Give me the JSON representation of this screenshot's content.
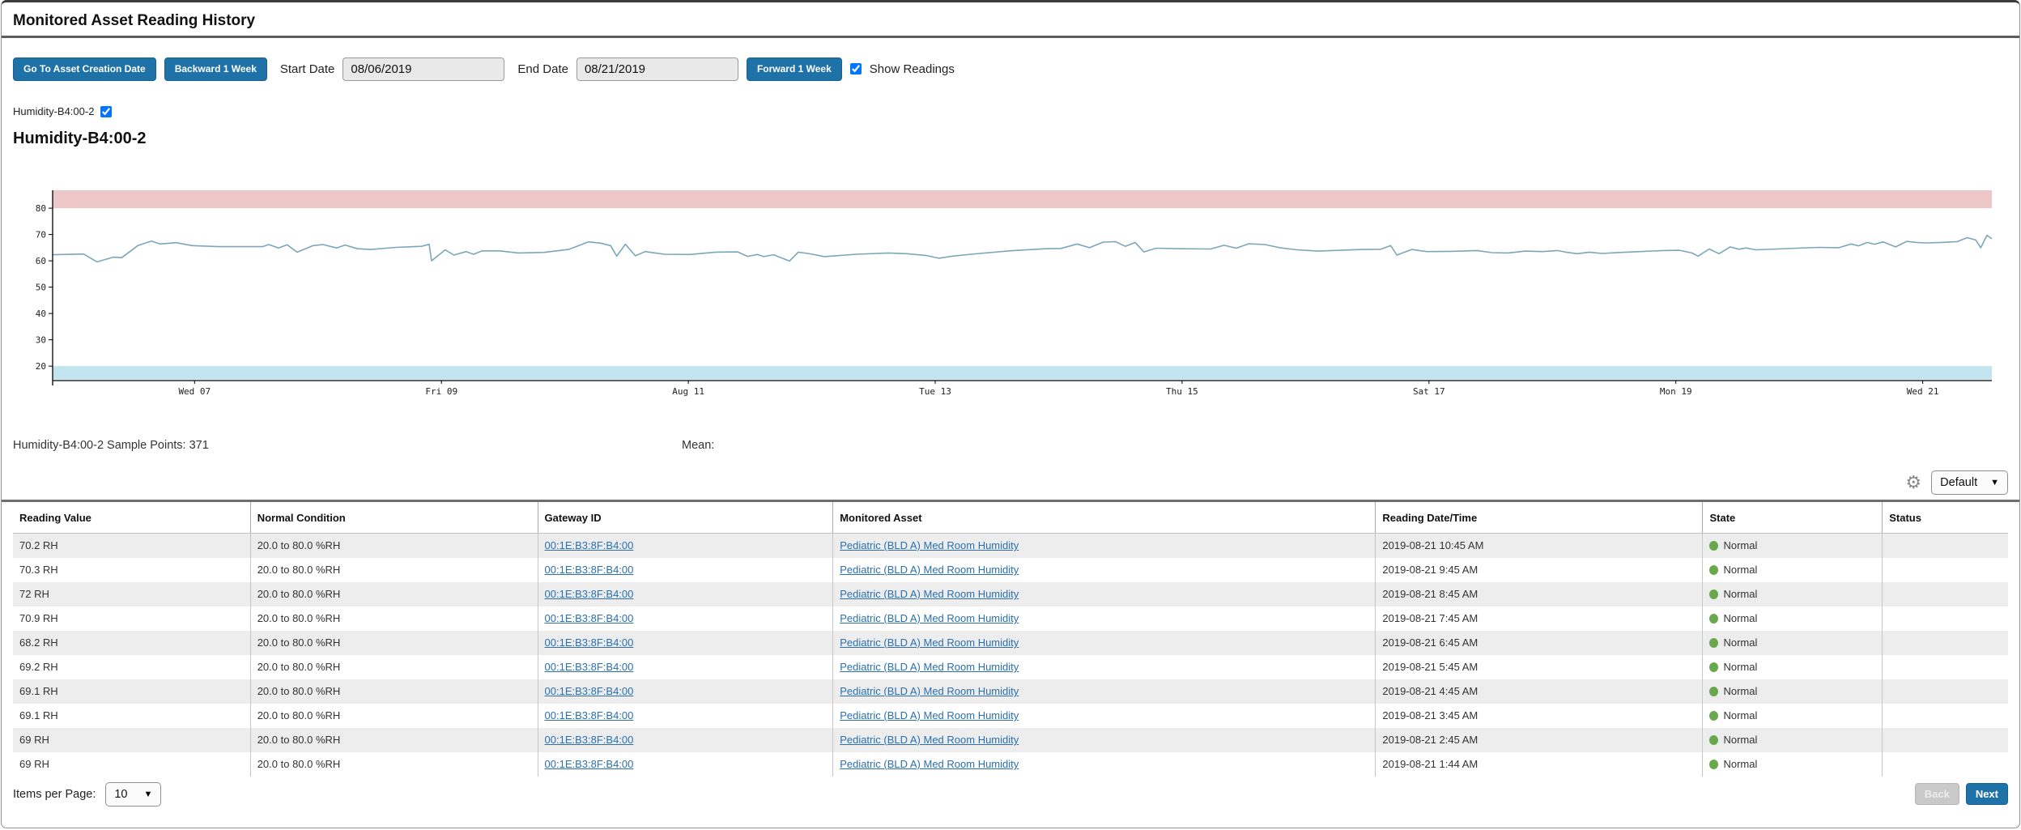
{
  "page": {
    "title": "Monitored Asset Reading History"
  },
  "colors": {
    "accent_blue": "#1f72a8",
    "link_blue": "#2a6fae",
    "state_normal_green": "#6aa84e",
    "band_high_pink": "#edc7c7",
    "band_low_blue": "#c2e4ee",
    "line_blue": "#7ba7b9"
  },
  "toolbar": {
    "go_to_creation_label": "Go To Asset Creation Date",
    "backward_label": "Backward 1 Week",
    "start_date_label": "Start Date",
    "start_date_value": "08/06/2019",
    "end_date_label": "End Date",
    "end_date_value": "08/21/2019",
    "forward_label": "Forward 1 Week",
    "show_readings_label": "Show Readings",
    "show_readings_checked": true
  },
  "series_toggle": {
    "label": "Humidity-B4:00-2",
    "checked": true
  },
  "chart_heading": "Humidity-B4:00-2",
  "chart_data": {
    "type": "line",
    "title": "Humidity-B4:00-2",
    "xlabel": "",
    "ylabel": "",
    "unit": "%RH",
    "sample_points": 371,
    "ylim": [
      14.5,
      86.8
    ],
    "yticks": [
      20,
      30,
      40,
      50,
      60,
      70,
      80
    ],
    "x_range_days": [
      -0.15,
      15.56
    ],
    "xtick_days": [
      1,
      3,
      5,
      7,
      9,
      11,
      13,
      15
    ],
    "xtick_labels": [
      "Wed 07",
      "Fri 09",
      "Aug 11",
      "Tue 13",
      "Thu 15",
      "Sat 17",
      "Mon 19",
      "Wed 21"
    ],
    "grid": false,
    "legend": "none",
    "bands": {
      "high": {
        "from": 80,
        "to": 86.8,
        "color": "#edc7c7",
        "meaning": "above normal condition max 80.0 %RH"
      },
      "low": {
        "from": 14.9,
        "to": 20,
        "color": "#c2e4ee",
        "meaning": "below normal condition min 20.0 %RH"
      }
    },
    "series": [
      {
        "name": "Humidity-B4:00-2",
        "color": "#7ba7b9",
        "x_unit": "days since 2019-08-06 00:00",
        "points": [
          [
            -0.15,
            62.3
          ],
          [
            0.1,
            62.6
          ],
          [
            0.21,
            59.6
          ],
          [
            0.34,
            61.4
          ],
          [
            0.41,
            61.2
          ],
          [
            0.54,
            65.8
          ],
          [
            0.65,
            67.5
          ],
          [
            0.72,
            66.4
          ],
          [
            0.85,
            66.9
          ],
          [
            0.98,
            65.8
          ],
          [
            1.19,
            65.4
          ],
          [
            1.55,
            65.4
          ],
          [
            1.6,
            66.2
          ],
          [
            1.68,
            64.9
          ],
          [
            1.75,
            66.1
          ],
          [
            1.83,
            63.3
          ],
          [
            1.96,
            65.8
          ],
          [
            2.04,
            66.2
          ],
          [
            2.15,
            64.9
          ],
          [
            2.22,
            66.0
          ],
          [
            2.32,
            64.6
          ],
          [
            2.43,
            64.3
          ],
          [
            2.63,
            65.1
          ],
          [
            2.84,
            65.5
          ],
          [
            2.9,
            66.3
          ],
          [
            2.92,
            60.0
          ],
          [
            3.03,
            64.2
          ],
          [
            3.1,
            62.2
          ],
          [
            3.2,
            63.5
          ],
          [
            3.26,
            62.5
          ],
          [
            3.33,
            63.8
          ],
          [
            3.47,
            63.8
          ],
          [
            3.62,
            63.0
          ],
          [
            3.83,
            63.2
          ],
          [
            4.03,
            64.3
          ],
          [
            4.19,
            67.2
          ],
          [
            4.29,
            66.7
          ],
          [
            4.37,
            65.8
          ],
          [
            4.42,
            61.8
          ],
          [
            4.49,
            66.3
          ],
          [
            4.57,
            61.9
          ],
          [
            4.65,
            63.5
          ],
          [
            4.73,
            63.0
          ],
          [
            4.81,
            62.5
          ],
          [
            5.01,
            62.4
          ],
          [
            5.22,
            63.3
          ],
          [
            5.4,
            63.4
          ],
          [
            5.48,
            61.7
          ],
          [
            5.56,
            62.4
          ],
          [
            5.61,
            61.6
          ],
          [
            5.69,
            62.3
          ],
          [
            5.82,
            59.9
          ],
          [
            5.89,
            63.3
          ],
          [
            5.97,
            62.8
          ],
          [
            6.1,
            61.6
          ],
          [
            6.36,
            62.5
          ],
          [
            6.62,
            63.0
          ],
          [
            6.77,
            62.7
          ],
          [
            6.93,
            62.0
          ],
          [
            7.03,
            61.0
          ],
          [
            7.14,
            61.8
          ],
          [
            7.29,
            62.5
          ],
          [
            7.6,
            63.8
          ],
          [
            7.89,
            64.6
          ],
          [
            8.02,
            64.7
          ],
          [
            8.15,
            66.4
          ],
          [
            8.25,
            65.0
          ],
          [
            8.36,
            67.1
          ],
          [
            8.46,
            67.3
          ],
          [
            8.54,
            65.5
          ],
          [
            8.62,
            67.0
          ],
          [
            8.69,
            63.4
          ],
          [
            8.79,
            64.8
          ],
          [
            9.0,
            64.6
          ],
          [
            9.23,
            64.5
          ],
          [
            9.34,
            65.9
          ],
          [
            9.44,
            64.8
          ],
          [
            9.54,
            66.5
          ],
          [
            9.67,
            66.2
          ],
          [
            9.79,
            65.0
          ],
          [
            9.93,
            64.2
          ],
          [
            10.1,
            63.7
          ],
          [
            10.28,
            64.0
          ],
          [
            10.46,
            64.3
          ],
          [
            10.61,
            64.4
          ],
          [
            10.69,
            65.8
          ],
          [
            10.74,
            62.2
          ],
          [
            10.86,
            64.3
          ],
          [
            10.98,
            63.5
          ],
          [
            11.18,
            63.6
          ],
          [
            11.39,
            63.9
          ],
          [
            11.51,
            63.1
          ],
          [
            11.64,
            63.0
          ],
          [
            11.78,
            63.7
          ],
          [
            11.92,
            63.5
          ],
          [
            12.04,
            63.9
          ],
          [
            12.11,
            63.3
          ],
          [
            12.2,
            62.7
          ],
          [
            12.3,
            63.3
          ],
          [
            12.4,
            62.8
          ],
          [
            12.56,
            63.2
          ],
          [
            12.75,
            63.6
          ],
          [
            12.9,
            63.9
          ],
          [
            13.03,
            64.0
          ],
          [
            13.13,
            63.0
          ],
          [
            13.18,
            61.8
          ],
          [
            13.27,
            64.5
          ],
          [
            13.35,
            62.7
          ],
          [
            13.44,
            65.3
          ],
          [
            13.51,
            64.4
          ],
          [
            13.57,
            64.9
          ],
          [
            13.65,
            64.2
          ],
          [
            13.82,
            64.5
          ],
          [
            13.98,
            64.8
          ],
          [
            14.16,
            65.1
          ],
          [
            14.32,
            65.0
          ],
          [
            14.42,
            66.4
          ],
          [
            14.48,
            65.7
          ],
          [
            14.55,
            67.0
          ],
          [
            14.61,
            66.3
          ],
          [
            14.68,
            67.2
          ],
          [
            14.78,
            65.3
          ],
          [
            14.87,
            67.4
          ],
          [
            14.95,
            67.0
          ],
          [
            15.02,
            66.8
          ],
          [
            15.15,
            67.0
          ],
          [
            15.28,
            67.3
          ],
          [
            15.36,
            68.8
          ],
          [
            15.43,
            67.9
          ],
          [
            15.47,
            65.0
          ],
          [
            15.52,
            69.7
          ],
          [
            15.56,
            68.4
          ]
        ]
      }
    ]
  },
  "summary": {
    "sample_points_text": "Humidity-B4:00-2 Sample Points: 371",
    "mean_text": "Mean:"
  },
  "table_controls": {
    "view_selector_value": "Default"
  },
  "table": {
    "columns": [
      "Reading Value",
      "Normal Condition",
      "Gateway ID",
      "Monitored Asset",
      "Reading Date/Time",
      "State",
      "Status"
    ],
    "rows": [
      {
        "reading_value": "70.2 RH",
        "normal_condition": "20.0 to 80.0 %RH",
        "gateway_id": "00:1E:B3:8F:B4:00",
        "monitored_asset": "Pediatric (BLD A) Med Room Humidity",
        "reading_datetime": "2019-08-21 10:45 AM",
        "state": "Normal",
        "status": ""
      },
      {
        "reading_value": "70.3 RH",
        "normal_condition": "20.0 to 80.0 %RH",
        "gateway_id": "00:1E:B3:8F:B4:00",
        "monitored_asset": "Pediatric (BLD A) Med Room Humidity",
        "reading_datetime": "2019-08-21 9:45 AM",
        "state": "Normal",
        "status": ""
      },
      {
        "reading_value": "72 RH",
        "normal_condition": "20.0 to 80.0 %RH",
        "gateway_id": "00:1E:B3:8F:B4:00",
        "monitored_asset": "Pediatric (BLD A) Med Room Humidity",
        "reading_datetime": "2019-08-21 8:45 AM",
        "state": "Normal",
        "status": ""
      },
      {
        "reading_value": "70.9 RH",
        "normal_condition": "20.0 to 80.0 %RH",
        "gateway_id": "00:1E:B3:8F:B4:00",
        "monitored_asset": "Pediatric (BLD A) Med Room Humidity",
        "reading_datetime": "2019-08-21 7:45 AM",
        "state": "Normal",
        "status": ""
      },
      {
        "reading_value": "68.2 RH",
        "normal_condition": "20.0 to 80.0 %RH",
        "gateway_id": "00:1E:B3:8F:B4:00",
        "monitored_asset": "Pediatric (BLD A) Med Room Humidity",
        "reading_datetime": "2019-08-21 6:45 AM",
        "state": "Normal",
        "status": ""
      },
      {
        "reading_value": "69.2 RH",
        "normal_condition": "20.0 to 80.0 %RH",
        "gateway_id": "00:1E:B3:8F:B4:00",
        "monitored_asset": "Pediatric (BLD A) Med Room Humidity",
        "reading_datetime": "2019-08-21 5:45 AM",
        "state": "Normal",
        "status": ""
      },
      {
        "reading_value": "69.1 RH",
        "normal_condition": "20.0 to 80.0 %RH",
        "gateway_id": "00:1E:B3:8F:B4:00",
        "monitored_asset": "Pediatric (BLD A) Med Room Humidity",
        "reading_datetime": "2019-08-21 4:45 AM",
        "state": "Normal",
        "status": ""
      },
      {
        "reading_value": "69.1 RH",
        "normal_condition": "20.0 to 80.0 %RH",
        "gateway_id": "00:1E:B3:8F:B4:00",
        "monitored_asset": "Pediatric (BLD A) Med Room Humidity",
        "reading_datetime": "2019-08-21 3:45 AM",
        "state": "Normal",
        "status": ""
      },
      {
        "reading_value": "69 RH",
        "normal_condition": "20.0 to 80.0 %RH",
        "gateway_id": "00:1E:B3:8F:B4:00",
        "monitored_asset": "Pediatric (BLD A) Med Room Humidity",
        "reading_datetime": "2019-08-21 2:45 AM",
        "state": "Normal",
        "status": ""
      },
      {
        "reading_value": "69 RH",
        "normal_condition": "20.0 to 80.0 %RH",
        "gateway_id": "00:1E:B3:8F:B4:00",
        "monitored_asset": "Pediatric (BLD A) Med Room Humidity",
        "reading_datetime": "2019-08-21 1:44 AM",
        "state": "Normal",
        "status": ""
      }
    ]
  },
  "pagination": {
    "items_per_page_label": "Items per Page:",
    "items_per_page_value": "10",
    "back_label": "Back",
    "next_label": "Next"
  }
}
